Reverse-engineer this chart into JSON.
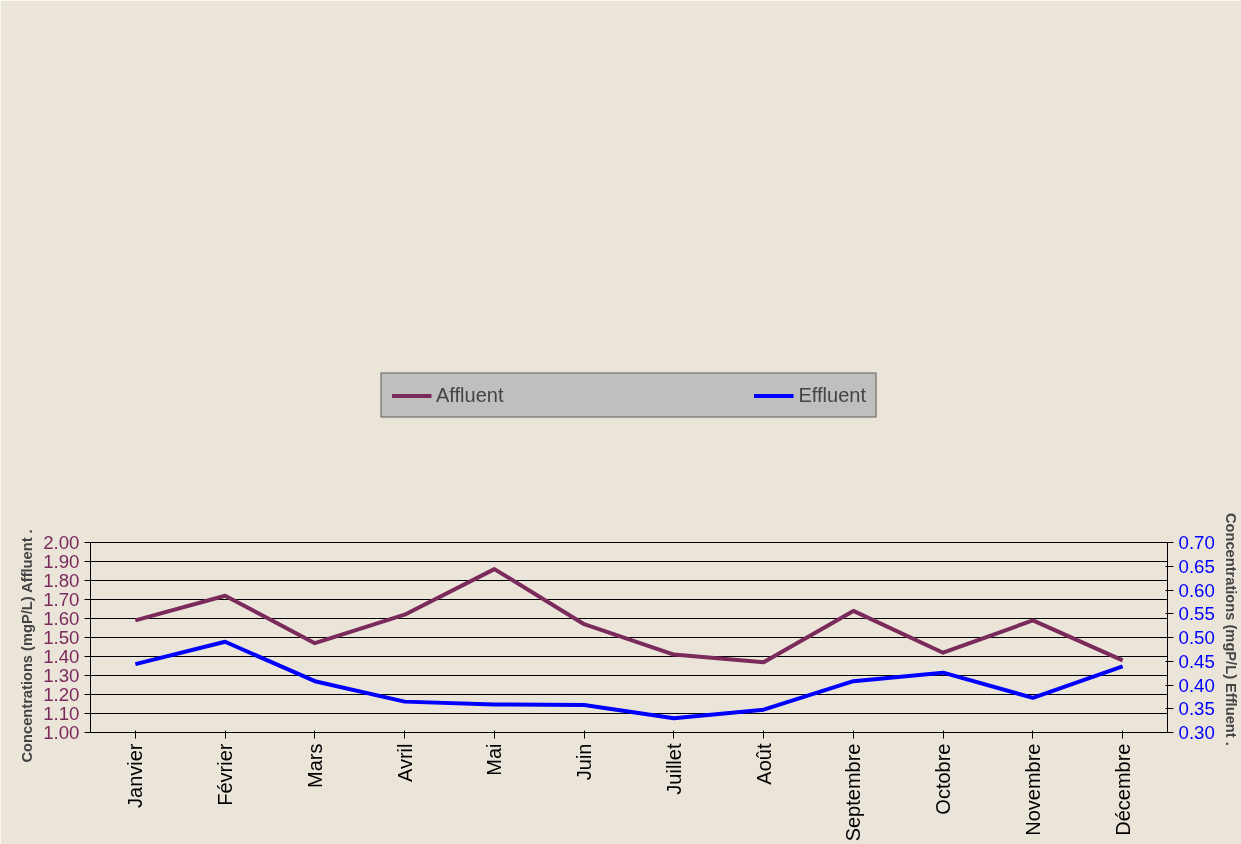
{
  "chart_data": {
    "type": "line",
    "categories": [
      "Janvier",
      "Février",
      "Mars",
      "Avril",
      "Mai",
      "Juin",
      "Juillet",
      "Août",
      "Septembre",
      "Octobre",
      "Novembre",
      "Décembre"
    ],
    "series": [
      {
        "name": "Affluent",
        "color": "#7b2a5c",
        "values": [
          1.59,
          1.72,
          1.47,
          1.62,
          1.86,
          1.57,
          1.41,
          1.37,
          1.64,
          1.42,
          1.59,
          1.38
        ]
      },
      {
        "name": "Effluent",
        "color": "#0000ff",
        "axis": "y2",
        "values": [
          0.444,
          0.491,
          0.408,
          0.365,
          0.359,
          0.358,
          0.33,
          0.348,
          0.408,
          0.426,
          0.373,
          0.439
        ]
      }
    ],
    "ylabel": "Concentrations (mgP/L) Affluent     .",
    "y2label": "Concentrations (mgP/L) Effluent     .",
    "ylim": [
      1.0,
      2.0
    ],
    "yticks": [
      {
        "value": 1.0,
        "label": "1.00"
      },
      {
        "value": 1.1,
        "label": "1.10"
      },
      {
        "value": 1.2,
        "label": "1.20"
      },
      {
        "value": 1.3,
        "label": "1.30"
      },
      {
        "value": 1.4,
        "label": "1.40"
      },
      {
        "value": 1.5,
        "label": "1.50"
      },
      {
        "value": 1.6,
        "label": "1.60"
      },
      {
        "value": 1.7,
        "label": "1.70"
      },
      {
        "value": 1.8,
        "label": "1.80"
      },
      {
        "value": 1.9,
        "label": "1.90"
      },
      {
        "value": 2.0,
        "label": "2.00"
      }
    ],
    "y2lim": [
      0.3,
      0.7
    ],
    "y2ticks": [
      {
        "value": 0.3,
        "label": "0.30"
      },
      {
        "value": 0.35,
        "label": "0.35"
      },
      {
        "value": 0.4,
        "label": "0.40"
      },
      {
        "value": 0.45,
        "label": "0.45"
      },
      {
        "value": 0.5,
        "label": "0.50"
      },
      {
        "value": 0.55,
        "label": "0.55"
      },
      {
        "value": 0.6,
        "label": "0.60"
      },
      {
        "value": 0.65,
        "label": "0.65"
      },
      {
        "value": 0.7,
        "label": "0.70"
      }
    ],
    "grid": "y",
    "legend": "top",
    "marker": "none",
    "line_style": "solid"
  }
}
